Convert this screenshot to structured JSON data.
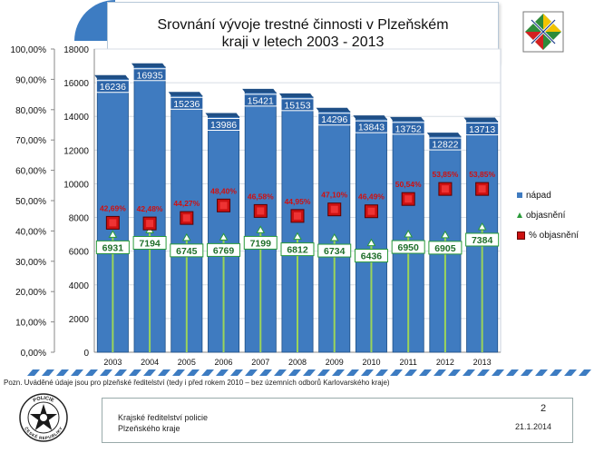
{
  "slide": {
    "title": "Srovnání vývoje trestné činnosti v Plzeňském kraji v letech  2003 - 2013",
    "footnote": "Pozn. Uváděné  údaje jsou pro plzeňské ředitelství (tedy i před rokem 2010 – bez územních odborů Karlovarského  kraje)",
    "footer_org_line1": "Krajské ředitelství policie",
    "footer_org_line2": "Plzeňského kraje",
    "page_number": "2",
    "date": "21.1.2014",
    "logo_text_top": "POLICIE",
    "logo_text_bottom": "ČESKÉ REPUBLIKY"
  },
  "colors": {
    "bar": "#3f7bc0",
    "bar_dark": "#1f4f86",
    "solved_line": "#9bd45a",
    "percent_marker": "#cc1111",
    "percent_label": "#d01010"
  },
  "chart_data": {
    "type": "bar",
    "title": "Srovnání vývoje trestné činnosti v Plzeňském kraji v letech  2003 - 2013",
    "categories": [
      "2003",
      "2004",
      "2005",
      "2006",
      "2007",
      "2008",
      "2009",
      "2010",
      "2011",
      "2012",
      "2013"
    ],
    "series": [
      {
        "name": "nápad",
        "axis": "right",
        "type": "bar",
        "values": [
          16236,
          16935,
          15236,
          13986,
          15421,
          15153,
          14296,
          13843,
          13752,
          12822,
          13713
        ]
      },
      {
        "name": "objasnění",
        "axis": "right",
        "type": "line",
        "values": [
          6931,
          7194,
          6745,
          6769,
          7199,
          6812,
          6734,
          6436,
          6950,
          6905,
          7384
        ]
      },
      {
        "name": "% objasnění",
        "axis": "left",
        "type": "scatter",
        "values": [
          42.69,
          42.48,
          44.27,
          48.4,
          46.58,
          44.95,
          47.1,
          46.49,
          50.54,
          53.85,
          53.85
        ],
        "labels": [
          "42,69%",
          "42,48%",
          "44,27%",
          "48,40%",
          "46,58%",
          "44,95%",
          "47,10%",
          "46,49%",
          "50,54%",
          "53,85%",
          "53,85%"
        ]
      }
    ],
    "y_left": {
      "range": [
        0,
        100
      ],
      "ticks": [
        "0,00%",
        "10,00%",
        "20,00%",
        "30,00%",
        "40,00%",
        "50,00%",
        "60,00%",
        "70,00%",
        "80,00%",
        "90,00%",
        "100,00%"
      ]
    },
    "y_right": {
      "range": [
        0,
        18000
      ],
      "ticks": [
        "0",
        "2000",
        "4000",
        "6000",
        "8000",
        "10000",
        "12000",
        "14000",
        "16000",
        "18000"
      ]
    },
    "grid": true,
    "legend_position": "right"
  }
}
